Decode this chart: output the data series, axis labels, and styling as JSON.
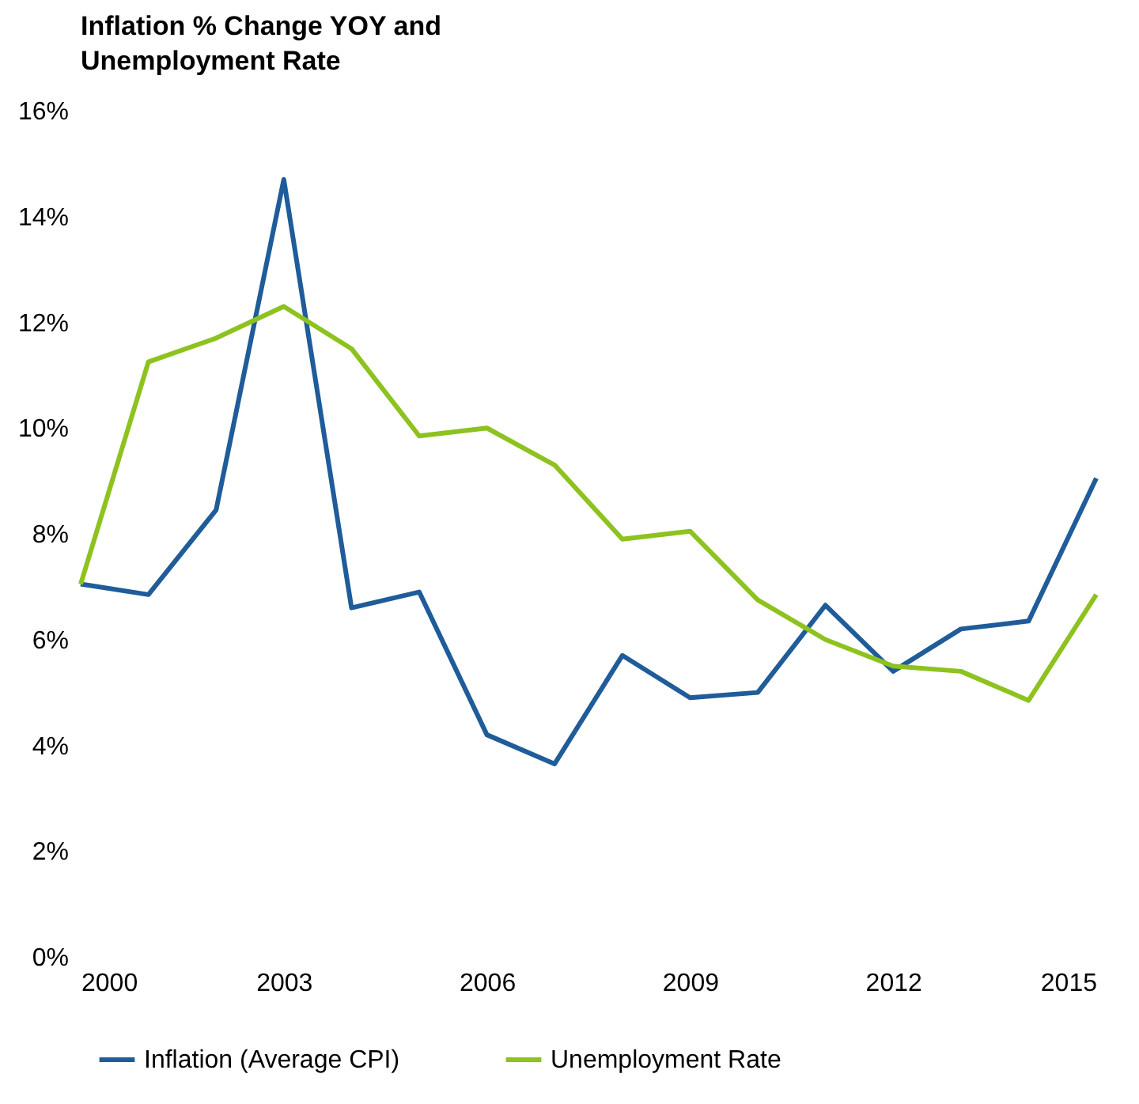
{
  "chart_data": {
    "type": "line",
    "title": "Inflation % Change YOY and Unemployment Rate",
    "x": [
      2000,
      2001,
      2002,
      2003,
      2004,
      2005,
      2006,
      2007,
      2008,
      2009,
      2010,
      2011,
      2012,
      2013,
      2014,
      2015
    ],
    "series": [
      {
        "name": "Inflation (Average CPI)",
        "color": "#1f5c99",
        "values": [
          7.05,
          6.85,
          8.45,
          14.7,
          6.6,
          6.9,
          4.2,
          3.65,
          5.7,
          4.9,
          5.0,
          6.65,
          5.4,
          6.2,
          6.35,
          9.05
        ]
      },
      {
        "name": "Unemployment Rate",
        "color": "#8dc21f",
        "values": [
          7.05,
          11.25,
          11.7,
          12.3,
          11.5,
          9.85,
          10.0,
          9.3,
          7.9,
          8.05,
          6.75,
          6.0,
          5.5,
          5.4,
          4.85,
          6.85
        ]
      }
    ],
    "xlim": [
      2000,
      2015
    ],
    "xticks": [
      2000,
      2003,
      2006,
      2009,
      2012,
      2015
    ],
    "ylim": [
      0,
      16
    ],
    "yticks": [
      {
        "value": 0,
        "label": "0%"
      },
      {
        "value": 2,
        "label": "2%"
      },
      {
        "value": 4,
        "label": "4%"
      },
      {
        "value": 6,
        "label": "6%"
      },
      {
        "value": 8,
        "label": "8%"
      },
      {
        "value": 10,
        "label": "10%"
      },
      {
        "value": 12,
        "label": "12%"
      },
      {
        "value": 14,
        "label": "14%"
      },
      {
        "value": 16,
        "label": "16%"
      }
    ],
    "grid": false,
    "legend": "bottom",
    "marker": "none",
    "line_style": "solid"
  }
}
